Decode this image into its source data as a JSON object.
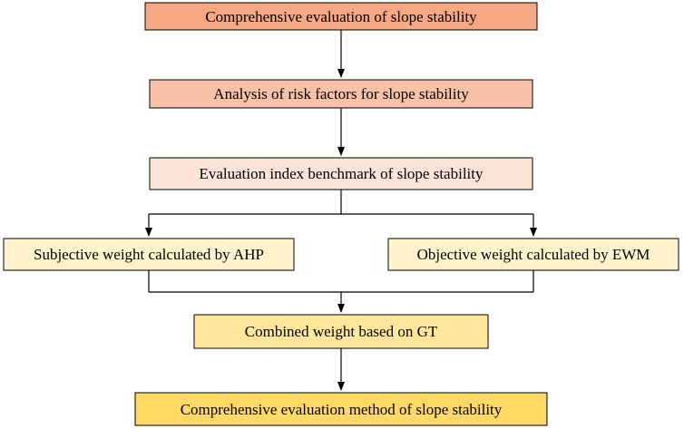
{
  "nodes": [
    {
      "id": "n1",
      "label": "Comprehensive evaluation of slope stability",
      "fill": "#F5A882"
    },
    {
      "id": "n2",
      "label": "Analysis of risk factors for slope stability",
      "fill": "#F8C1A8"
    },
    {
      "id": "n3",
      "label": "Evaluation index benchmark of slope stability",
      "fill": "#FBE3D8"
    },
    {
      "id": "n4",
      "label": "Subjective weight calculated by AHP",
      "fill": "#FFF3CC"
    },
    {
      "id": "n5",
      "label": "Objective weight calculated by EWM",
      "fill": "#FFF3CC"
    },
    {
      "id": "n6",
      "label": "Combined weight based on GT",
      "fill": "#FFE699"
    },
    {
      "id": "n7",
      "label": "Comprehensive evaluation method of slope stability",
      "fill": "#FFD966"
    }
  ],
  "edges": [
    {
      "from": "n1",
      "to": "n2"
    },
    {
      "from": "n2",
      "to": "n3"
    },
    {
      "from": "n3",
      "to": "n4"
    },
    {
      "from": "n3",
      "to": "n5"
    },
    {
      "from": "n4",
      "to": "n6"
    },
    {
      "from": "n5",
      "to": "n6"
    },
    {
      "from": "n6",
      "to": "n7"
    }
  ]
}
